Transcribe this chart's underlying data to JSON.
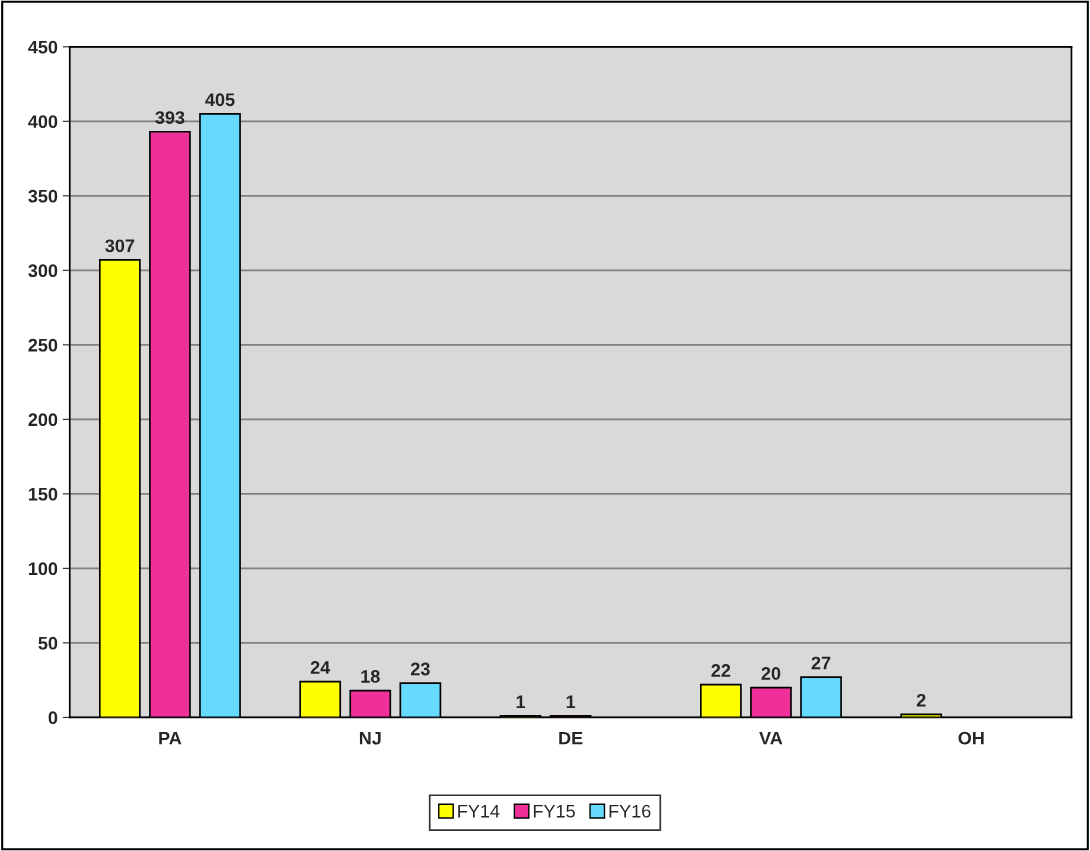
{
  "chart_data": {
    "type": "bar",
    "categories": [
      "PA",
      "NJ",
      "DE",
      "VA",
      "OH"
    ],
    "series": [
      {
        "name": "FY14",
        "color": "#ffff00",
        "values": [
          307,
          24,
          1,
          22,
          2
        ]
      },
      {
        "name": "FY15",
        "color": "#f0309a",
        "values": [
          393,
          18,
          1,
          20,
          null
        ]
      },
      {
        "name": "FY16",
        "color": "#66d9ff",
        "values": [
          405,
          23,
          null,
          27,
          null
        ]
      }
    ],
    "ylim": [
      0,
      450
    ],
    "yticks": [
      0,
      50,
      100,
      150,
      200,
      250,
      300,
      350,
      400,
      450
    ],
    "grid": "y",
    "legend": "bottom",
    "data_labels": true
  }
}
